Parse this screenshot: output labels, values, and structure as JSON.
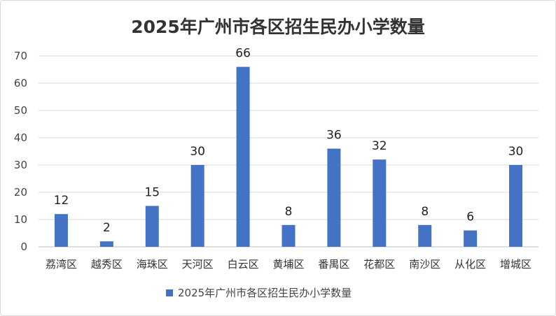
{
  "chart_data": {
    "type": "bar",
    "title": "2025年广州市各区招生民办小学数量",
    "categories": [
      "荔湾区",
      "越秀区",
      "海珠区",
      "天河区",
      "白云区",
      "黄埔区",
      "番禺区",
      "花都区",
      "南沙区",
      "从化区",
      "增城区"
    ],
    "series": [
      {
        "name": "2025年广州市各区招生民办小学数量",
        "values": [
          12,
          2,
          15,
          30,
          66,
          8,
          36,
          32,
          8,
          6,
          30
        ],
        "color": "#4472C4"
      }
    ],
    "ylim": [
      0,
      70
    ],
    "yticks": [
      0,
      10,
      20,
      30,
      40,
      50,
      60,
      70
    ],
    "grid": true,
    "legend": "bottom",
    "data_labels": true
  }
}
